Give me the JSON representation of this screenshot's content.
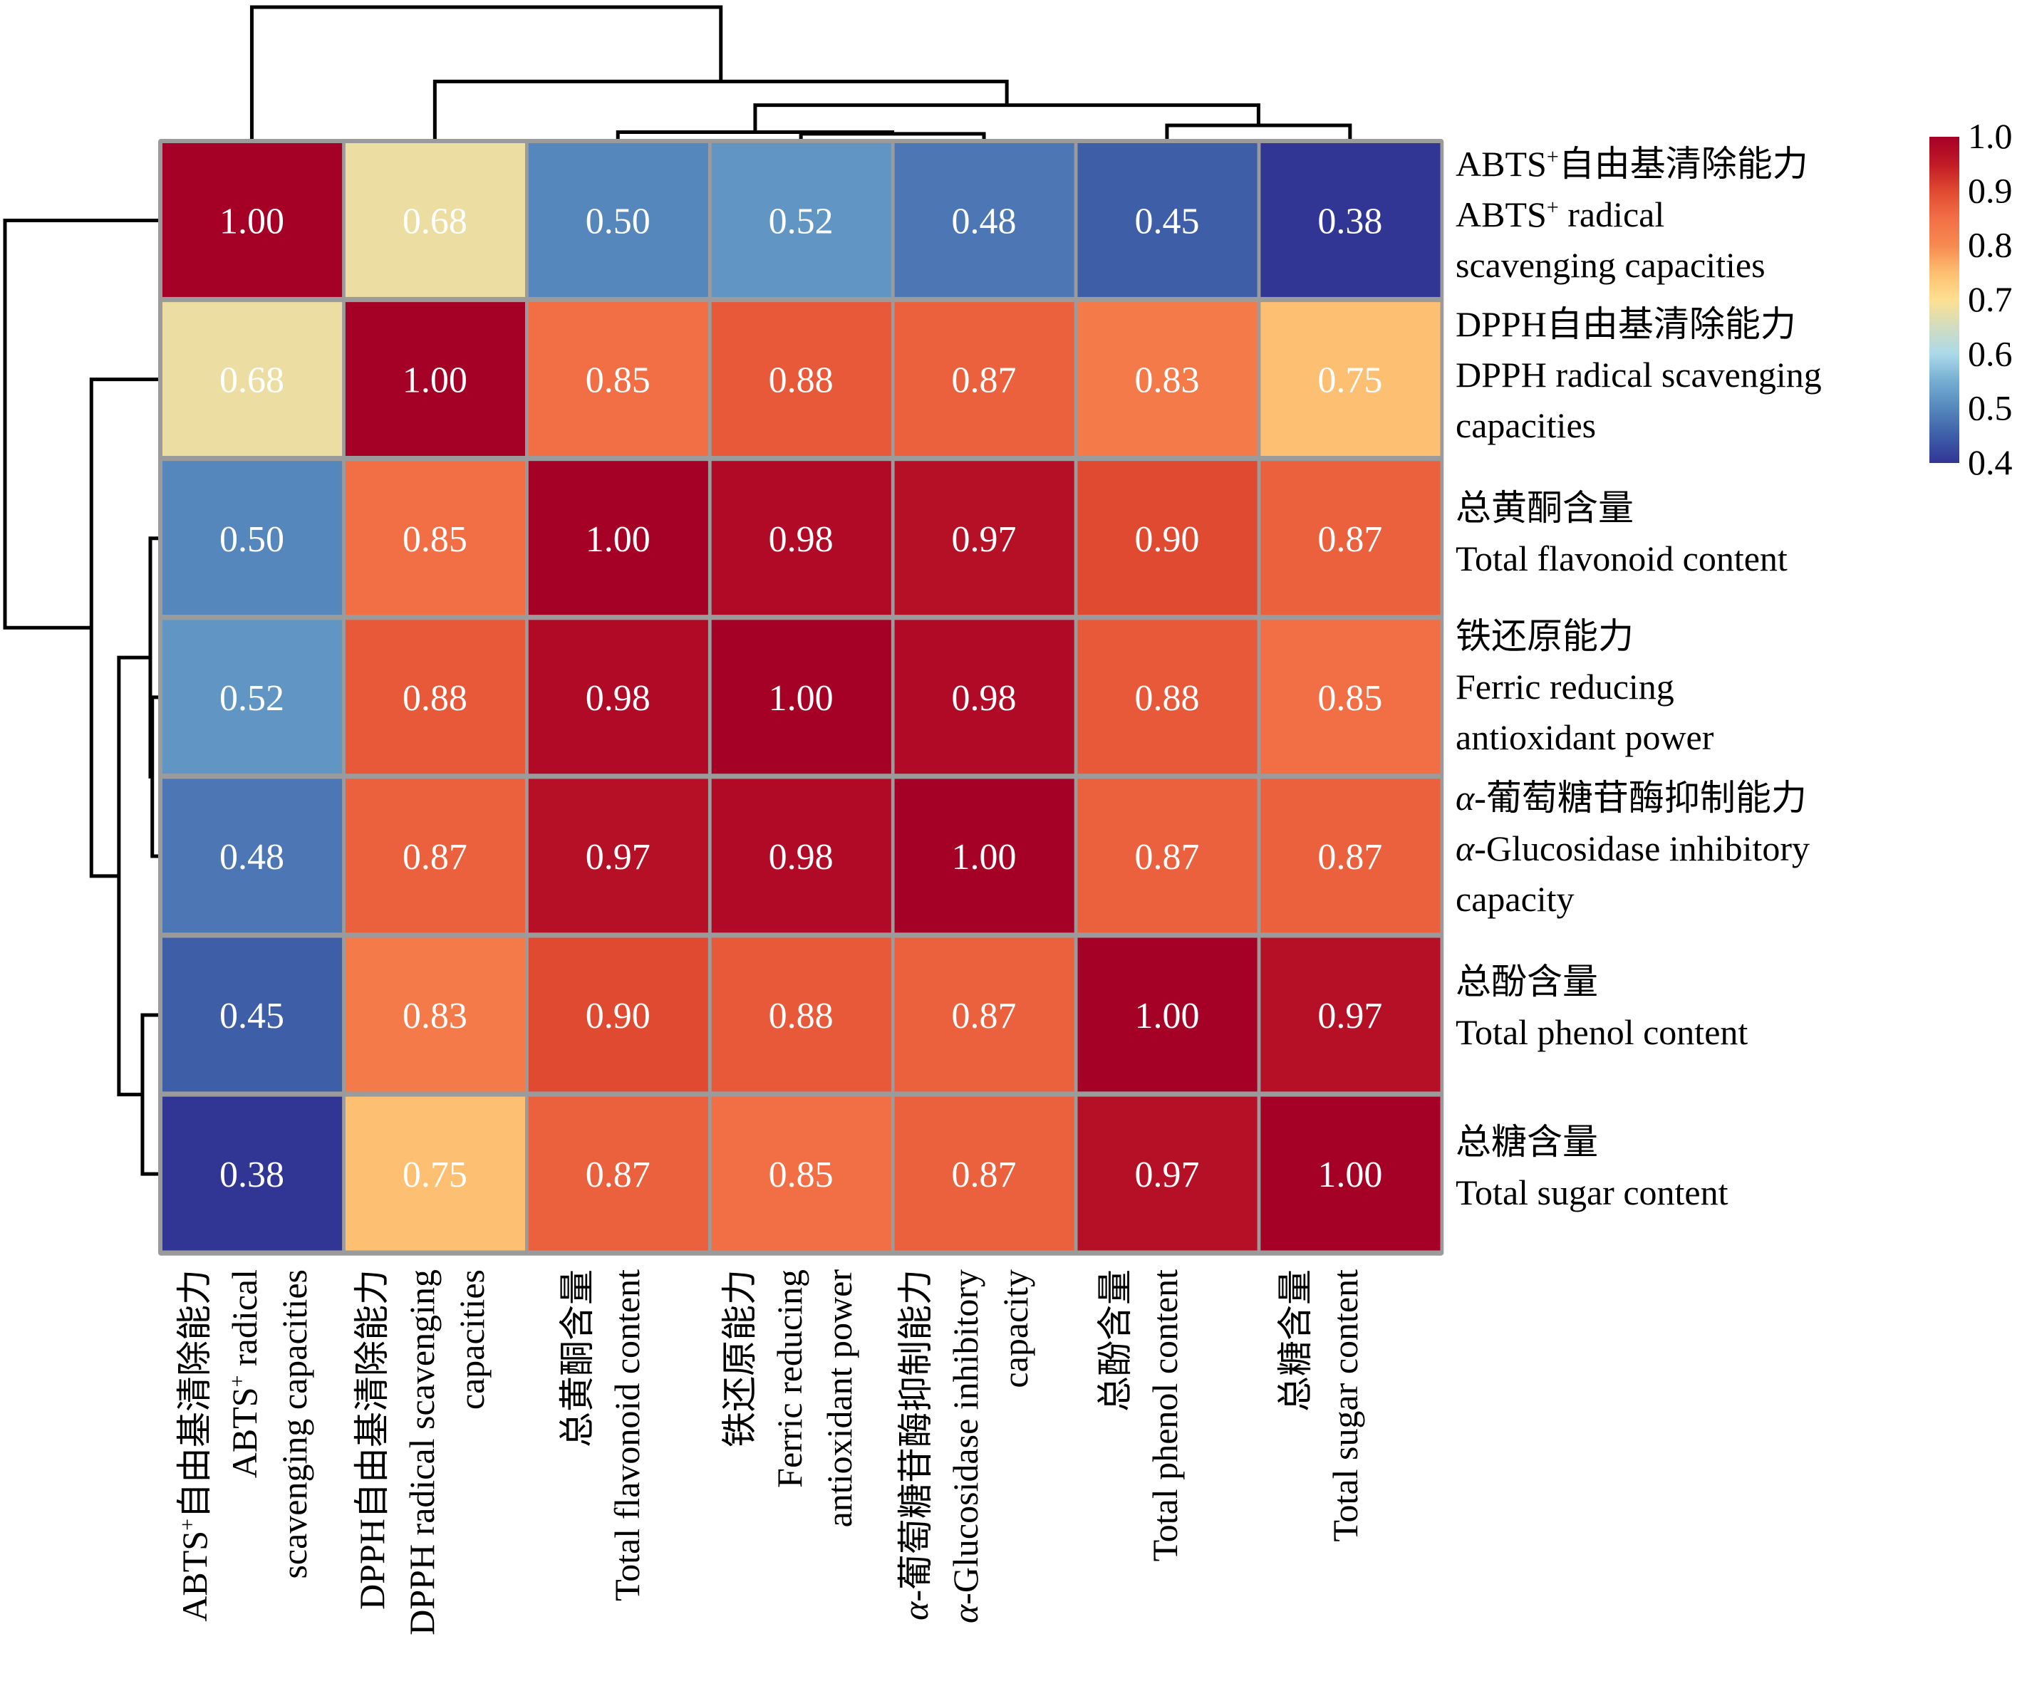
{
  "chart_data": {
    "type": "heatmap",
    "title": "",
    "subtitle": "",
    "row_labels": [
      {
        "zh": "ABTS⁺自由基清除能力",
        "en": [
          "ABTS⁺ radical",
          "scavenging capacities"
        ]
      },
      {
        "zh": "DPPH自由基清除能力",
        "en": [
          "DPPH radical scavenging",
          "capacities"
        ]
      },
      {
        "zh": "总黄酮含量",
        "en": [
          "Total flavonoid content"
        ]
      },
      {
        "zh": "铁还原能力",
        "en": [
          "Ferric reducing",
          "antioxidant power"
        ]
      },
      {
        "zh": "α-葡萄糖苷酶抑制能力",
        "en": [
          "α-Glucosidase inhibitory",
          "capacity"
        ]
      },
      {
        "zh": "总酚含量",
        "en": [
          "Total phenol content"
        ]
      },
      {
        "zh": "总糖含量",
        "en": [
          "Total sugar content"
        ]
      }
    ],
    "col_labels": [
      {
        "zh": "ABTS⁺自由基清除能力",
        "en": [
          "ABTS⁺ radical",
          "scavenging capacities"
        ]
      },
      {
        "zh": "DPPH自由基清除能力",
        "en": [
          "DPPH radical scavenging",
          "capacities"
        ]
      },
      {
        "zh": "总黄酮含量",
        "en": [
          "Total flavonoid content"
        ]
      },
      {
        "zh": "铁还原能力",
        "en": [
          "Ferric reducing",
          "antioxidant power"
        ]
      },
      {
        "zh": "α-葡萄糖苷酶抑制能力",
        "en": [
          "α-Glucosidase inhibitory",
          "capacity"
        ]
      },
      {
        "zh": "总酚含量",
        "en": [
          "Total phenol content"
        ]
      },
      {
        "zh": "总糖含量",
        "en": [
          "Total sugar content"
        ]
      }
    ],
    "values": [
      [
        1.0,
        0.68,
        0.5,
        0.52,
        0.48,
        0.45,
        0.38
      ],
      [
        0.68,
        1.0,
        0.85,
        0.88,
        0.87,
        0.83,
        0.75
      ],
      [
        0.5,
        0.85,
        1.0,
        0.98,
        0.97,
        0.9,
        0.87
      ],
      [
        0.52,
        0.88,
        0.98,
        1.0,
        0.98,
        0.88,
        0.85
      ],
      [
        0.48,
        0.87,
        0.97,
        0.98,
        1.0,
        0.87,
        0.87
      ],
      [
        0.45,
        0.83,
        0.9,
        0.88,
        0.87,
        1.0,
        0.97
      ],
      [
        0.38,
        0.75,
        0.87,
        0.85,
        0.87,
        0.97,
        1.0
      ]
    ],
    "value_format": "0.00",
    "colorbar": {
      "range": [
        0.4,
        1.0
      ],
      "ticks": [
        "1.0",
        "0.9",
        "0.8",
        "0.7",
        "0.6",
        "0.5",
        "0.4"
      ],
      "placement": "top-right",
      "colormap": "RdYlBu_r",
      "stops": [
        {
          "v": 0.4,
          "color": "#313695"
        },
        {
          "v": 0.45,
          "color": "#3e5ea8"
        },
        {
          "v": 0.5,
          "color": "#5587bc"
        },
        {
          "v": 0.55,
          "color": "#74add1"
        },
        {
          "v": 0.6,
          "color": "#abd9e9"
        },
        {
          "v": 0.65,
          "color": "#d0dcc0"
        },
        {
          "v": 0.7,
          "color": "#fee090"
        },
        {
          "v": 0.75,
          "color": "#fdbf71"
        },
        {
          "v": 0.8,
          "color": "#f68a50"
        },
        {
          "v": 0.85,
          "color": "#f26f46"
        },
        {
          "v": 0.9,
          "color": "#e04a30"
        },
        {
          "v": 0.95,
          "color": "#c11a27"
        },
        {
          "v": 1.0,
          "color": "#a50026"
        }
      ]
    },
    "dendrogram": {
      "order": [
        0,
        1,
        2,
        3,
        4,
        5,
        6
      ],
      "merges": [
        {
          "a": [
            2
          ],
          "b": [
            3,
            4
          ],
          "height": 0.02
        },
        {
          "a": [
            3
          ],
          "b": [
            4
          ],
          "height": 0.015
        },
        {
          "a": [
            5
          ],
          "b": [
            6
          ],
          "height": 0.04
        },
        {
          "a": [
            2,
            3,
            4
          ],
          "b": [
            5,
            6
          ],
          "height": 0.1
        },
        {
          "a": [
            1
          ],
          "b": [
            2,
            3,
            4,
            5,
            6
          ],
          "height": 0.17
        },
        {
          "a": [
            0
          ],
          "b": [
            1,
            2,
            3,
            4,
            5,
            6
          ],
          "height": 0.39
        }
      ]
    },
    "grid_color": "#9b9b9b",
    "grid": true
  }
}
